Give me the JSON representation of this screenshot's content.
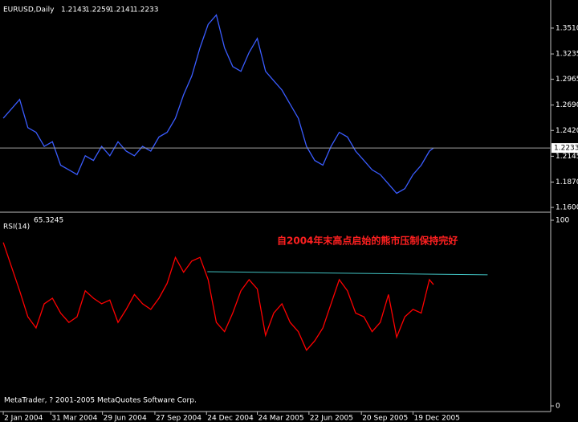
{
  "chart_data": [
    {
      "type": "line",
      "title": "EURUSD,Daily",
      "ohlc": [
        1.2143,
        1.2259,
        1.2141,
        1.2233
      ],
      "x": [
        0,
        10,
        20,
        30,
        40,
        50,
        60,
        70,
        80,
        90,
        100,
        110,
        120,
        130,
        140,
        150,
        160,
        170,
        180,
        190,
        200,
        210,
        220,
        230,
        240,
        250,
        260,
        270,
        280,
        290,
        300,
        310,
        320,
        330,
        340,
        350,
        360,
        370,
        380,
        390,
        400,
        410,
        420,
        430,
        440,
        450,
        460,
        470,
        480,
        490,
        500,
        510,
        520,
        525
      ],
      "series": [
        {
          "color": "#3a5cff",
          "values": [
            1.255,
            1.265,
            1.275,
            1.245,
            1.24,
            1.225,
            1.23,
            1.205,
            1.2,
            1.195,
            1.215,
            1.21,
            1.225,
            1.215,
            1.23,
            1.22,
            1.215,
            1.225,
            1.22,
            1.235,
            1.24,
            1.255,
            1.28,
            1.3,
            1.33,
            1.355,
            1.365,
            1.33,
            1.31,
            1.305,
            1.325,
            1.34,
            1.305,
            1.295,
            1.285,
            1.27,
            1.255,
            1.225,
            1.21,
            1.205,
            1.225,
            1.24,
            1.235,
            1.22,
            1.21,
            1.2,
            1.195,
            1.185,
            1.175,
            1.18,
            1.195,
            1.205,
            1.22,
            1.2233
          ]
        }
      ],
      "xlim": [
        -4,
        668
      ],
      "ylim": [
        1.1566,
        1.3775
      ],
      "yticks": [
        {
          "value": 1.351,
          "label": "1.3510"
        },
        1.3235,
        1.2965,
        {
          "value": 1.269,
          "label": "1.2690"
        },
        {
          "value": 1.242,
          "label": "1.2420"
        },
        1.2145,
        {
          "value": 1.187,
          "label": "1.1870"
        },
        {
          "value": 1.16,
          "label": "1.1600"
        }
      ]
    },
    {
      "type": "line",
      "title": "RSI(14)",
      "current": 65.3245,
      "annotation": "自2004年末高点启始的熊市压制保持完好",
      "footer": "MetaTrader, ? 2001-2005 MetaQuotes Software Corp.",
      "x": [
        0,
        10,
        20,
        30,
        40,
        50,
        60,
        70,
        80,
        90,
        100,
        110,
        120,
        130,
        140,
        150,
        160,
        170,
        180,
        190,
        200,
        210,
        220,
        230,
        240,
        250,
        260,
        270,
        280,
        290,
        300,
        310,
        320,
        330,
        340,
        350,
        360,
        370,
        380,
        390,
        400,
        410,
        420,
        430,
        440,
        450,
        460,
        470,
        480,
        490,
        500,
        510,
        520,
        525
      ],
      "series": [
        {
          "color": "#ff0000",
          "values": [
            88,
            75,
            62,
            48,
            42,
            55,
            58,
            50,
            45,
            48,
            62,
            58,
            55,
            57,
            45,
            52,
            60,
            55,
            52,
            58,
            66,
            80,
            72,
            78,
            80,
            68,
            45,
            40,
            50,
            62,
            68,
            63,
            38,
            50,
            55,
            45,
            40,
            30,
            35,
            42,
            55,
            68,
            62,
            50,
            48,
            40,
            45,
            60,
            37,
            48,
            52,
            50,
            68,
            65.3245
          ]
        }
      ],
      "trendline": {
        "color": "#40c0c0",
        "x": [
          249,
          591
        ],
        "values": [
          72.3,
          70.6
        ]
      },
      "xlim": [
        -4,
        668
      ],
      "ylim": [
        0,
        100
      ],
      "yticks": [
        0,
        100
      ],
      "xticks": [
        {
          "value": 0,
          "label": "2 Jan 2004"
        },
        {
          "value": 58,
          "label": "31 Mar 2004"
        },
        {
          "value": 121,
          "label": "29 Jun 2004"
        },
        {
          "value": 185,
          "label": "27 Sep 2004"
        },
        {
          "value": 248,
          "label": "24 Dec 2004"
        },
        {
          "value": 310,
          "label": "24 Mar 2005"
        },
        {
          "value": 373,
          "label": "22 Jun 2005"
        },
        {
          "value": 437,
          "label": "20 Sep 2005"
        },
        {
          "value": 500,
          "label": "19 Dec 2005"
        }
      ]
    }
  ]
}
